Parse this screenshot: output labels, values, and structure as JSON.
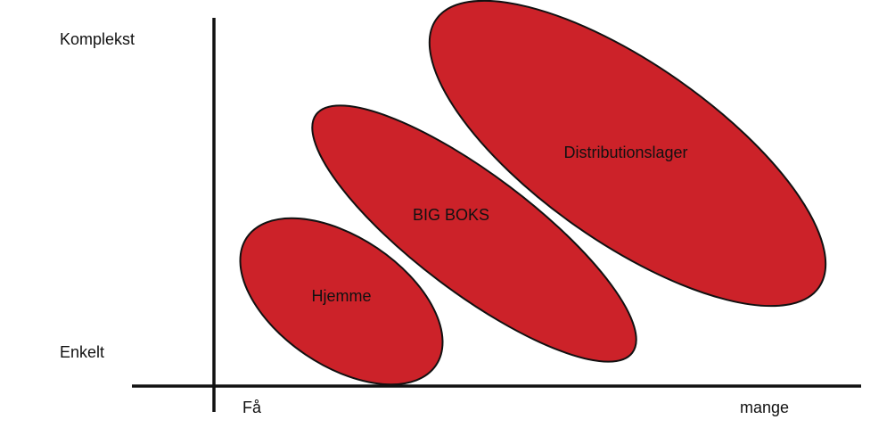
{
  "y_axis": {
    "top": "Komplekst",
    "bottom": "Enkelt"
  },
  "x_axis": {
    "left": "Få",
    "right": "mange"
  },
  "nodes": [
    {
      "label": "Hjemme"
    },
    {
      "label": "BIG BOKS"
    },
    {
      "label": "Distributionslager"
    }
  ]
}
